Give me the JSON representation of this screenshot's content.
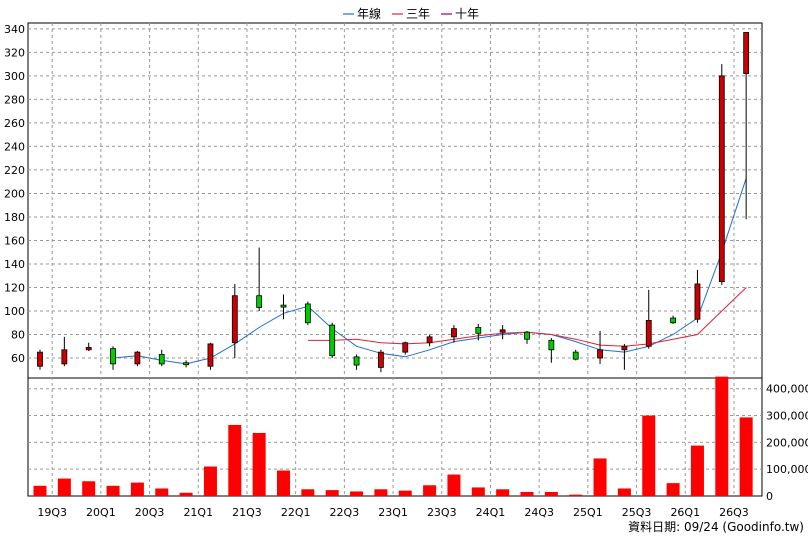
{
  "chart_data": {
    "type": "candlestick",
    "legend": [
      {
        "name": "年線",
        "color": "#1f6fd6"
      },
      {
        "name": "三年",
        "color": "#e0203a"
      },
      {
        "name": "十年",
        "color": "#a0006e"
      }
    ],
    "legend_position": "top-center",
    "x_tick_labels": [
      "19Q3",
      "20Q1",
      "20Q3",
      "21Q1",
      "21Q3",
      "22Q1",
      "22Q3",
      "23Q1",
      "23Q3",
      "24Q1",
      "24Q3",
      "25Q1",
      "25Q3",
      "26Q1",
      "26Q3"
    ],
    "price_axis": {
      "ticks": [
        60,
        80,
        100,
        120,
        140,
        160,
        180,
        200,
        220,
        240,
        260,
        280,
        300,
        320,
        340
      ],
      "ylim": [
        43,
        345
      ]
    },
    "volume_axis": {
      "ticks": [
        "0",
        "100,000",
        "200,000",
        "300,000",
        "400,000"
      ],
      "ylim": [
        0,
        440000
      ]
    },
    "grid": true,
    "periods": [
      {
        "open": 53,
        "high": 67,
        "low": 50,
        "close": 65,
        "vol": 38000
      },
      {
        "open": 55,
        "high": 78,
        "low": 53,
        "close": 67,
        "vol": 65000
      },
      {
        "open": 67,
        "high": 73,
        "low": 66,
        "close": 69,
        "vol": 55000
      },
      {
        "open": 68,
        "high": 70,
        "low": 50,
        "close": 55,
        "vol": 38000
      },
      {
        "open": 55,
        "high": 66,
        "low": 53,
        "close": 65,
        "vol": 50000
      },
      {
        "open": 63,
        "high": 67,
        "low": 53,
        "close": 55,
        "vol": 28000
      },
      {
        "open": 56,
        "high": 58,
        "low": 52,
        "close": 55,
        "vol": 12000
      },
      {
        "open": 53,
        "high": 73,
        "low": 50,
        "close": 72,
        "vol": 110000
      },
      {
        "open": 73,
        "high": 123,
        "low": 60,
        "close": 113,
        "vol": 265000
      },
      {
        "open": 113,
        "high": 154,
        "low": 100,
        "close": 103,
        "vol": 235000
      },
      {
        "open": 105,
        "high": 114,
        "low": 93,
        "close": 104,
        "vol": 95000
      },
      {
        "open": 106,
        "high": 108,
        "low": 88,
        "close": 90,
        "vol": 25000
      },
      {
        "open": 88,
        "high": 90,
        "low": 60,
        "close": 62,
        "vol": 22000
      },
      {
        "open": 61,
        "high": 63,
        "low": 50,
        "close": 54,
        "vol": 17000
      },
      {
        "open": 52,
        "high": 67,
        "low": 48,
        "close": 65,
        "vol": 25000
      },
      {
        "open": 65,
        "high": 74,
        "low": 63,
        "close": 73,
        "vol": 20000
      },
      {
        "open": 73,
        "high": 80,
        "low": 70,
        "close": 78,
        "vol": 40000
      },
      {
        "open": 78,
        "high": 88,
        "low": 73,
        "close": 85,
        "vol": 80000
      },
      {
        "open": 86,
        "high": 89,
        "low": 75,
        "close": 81,
        "vol": 32000
      },
      {
        "open": 82,
        "high": 88,
        "low": 76,
        "close": 84,
        "vol": 25000
      },
      {
        "open": 82,
        "high": 83,
        "low": 72,
        "close": 76,
        "vol": 15000
      },
      {
        "open": 75,
        "high": 77,
        "low": 56,
        "close": 67,
        "vol": 15000
      },
      {
        "open": 65,
        "high": 67,
        "low": 58,
        "close": 59,
        "vol": 5000
      },
      {
        "open": 60,
        "high": 83,
        "low": 55,
        "close": 67,
        "vol": 140000
      },
      {
        "open": 67,
        "high": 72,
        "low": 50,
        "close": 70,
        "vol": 28000
      },
      {
        "open": 70,
        "high": 118,
        "low": 68,
        "close": 92,
        "vol": 300000
      },
      {
        "open": 94,
        "high": 96,
        "low": 89,
        "close": 90,
        "vol": 48000
      },
      {
        "open": 93,
        "high": 135,
        "low": 90,
        "close": 123,
        "vol": 188000
      },
      {
        "open": 125,
        "high": 310,
        "low": 122,
        "close": 300,
        "vol": 445000
      },
      {
        "open": 302,
        "high": 337,
        "low": 178,
        "close": 337,
        "vol": 293000
      }
    ],
    "series": [
      {
        "name": "年線",
        "color": "#1f6fd6",
        "values": [
          null,
          null,
          null,
          60,
          62,
          58,
          55,
          60,
          72,
          86,
          98,
          104,
          85,
          70,
          64,
          61,
          67,
          74,
          77,
          80,
          82,
          80,
          74,
          67,
          65,
          70,
          80,
          94,
          150,
          213
        ]
      },
      {
        "name": "三年",
        "color": "#e0203a",
        "values": [
          null,
          null,
          null,
          null,
          null,
          null,
          null,
          null,
          null,
          null,
          null,
          75,
          75,
          76,
          73,
          72,
          73,
          76,
          79,
          81,
          82,
          80,
          76,
          71,
          70,
          72,
          76,
          80,
          100,
          120
        ]
      },
      {
        "name": "十年",
        "color": "#a0006e",
        "values": [
          null,
          null,
          null,
          null,
          null,
          null,
          null,
          null,
          null,
          null,
          null,
          null,
          null,
          null,
          null,
          null,
          null,
          null,
          null,
          null,
          null,
          null,
          null,
          null,
          null,
          null,
          null,
          null,
          null,
          null
        ]
      }
    ]
  },
  "credit": "資料日期: 09/24 (Goodinfo.tw)"
}
